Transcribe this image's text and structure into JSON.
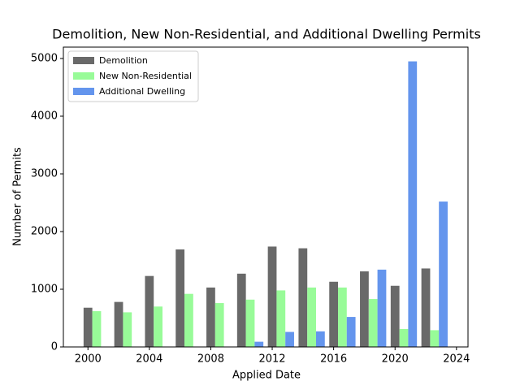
{
  "chart_data": {
    "type": "bar",
    "title": "Demolition, New Non-Residential, and Additional Dwelling Permits",
    "x_label": "Applied Date",
    "y_label": "Number of Permits",
    "x": [
      2000,
      2002,
      2004,
      2006,
      2008,
      2010,
      2012,
      2014,
      2016,
      2018,
      2020,
      2022
    ],
    "series": [
      {
        "name": "Demolition",
        "color": "#696969",
        "values": [
          680,
          780,
          1230,
          1690,
          1030,
          1270,
          1740,
          1710,
          1130,
          1310,
          1060,
          1360
        ]
      },
      {
        "name": "New Non-Residential",
        "color": "#98fb98",
        "values": [
          620,
          600,
          700,
          920,
          760,
          820,
          980,
          1030,
          1030,
          830,
          310,
          290
        ]
      },
      {
        "name": "Additional Dwelling",
        "color": "#6495ed",
        "values": [
          null,
          null,
          null,
          null,
          null,
          90,
          260,
          270,
          520,
          1340,
          4950,
          2520
        ]
      }
    ],
    "xlim": [
      1998.4,
      2024.75
    ],
    "xticks": [
      2000,
      2004,
      2008,
      2012,
      2016,
      2020,
      2024
    ],
    "ylim": [
      0,
      5197
    ],
    "yticks": [
      0,
      1000,
      2000,
      3000,
      4000,
      5000
    ],
    "legend": "upper left",
    "grid": false
  }
}
